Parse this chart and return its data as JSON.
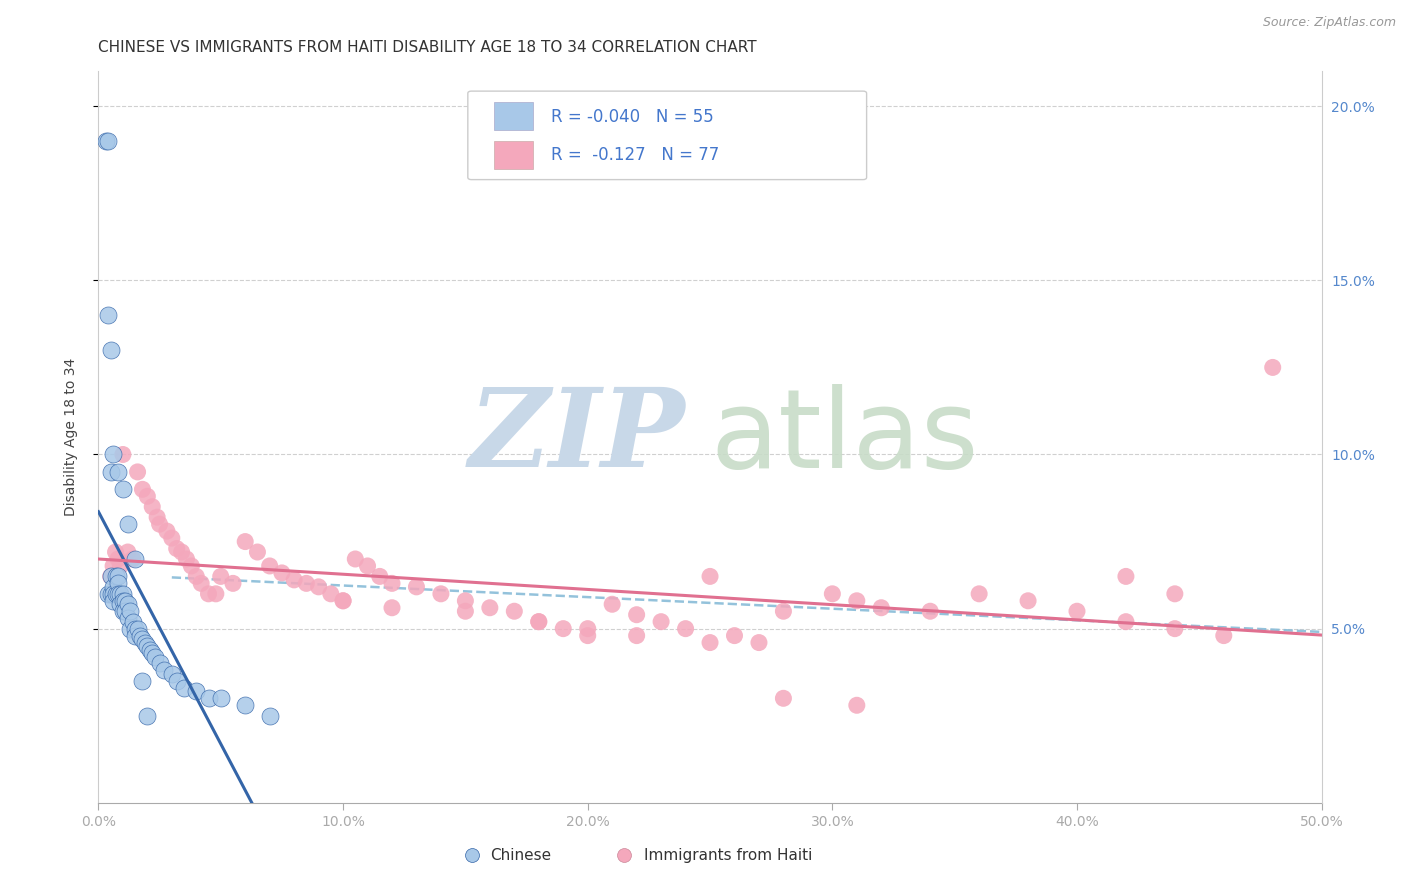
{
  "title": "CHINESE VS IMMIGRANTS FROM HAITI DISABILITY AGE 18 TO 34 CORRELATION CHART",
  "source": "Source: ZipAtlas.com",
  "ylabel": "Disability Age 18 to 34",
  "xlim": [
    0.0,
    0.5
  ],
  "ylim": [
    0.0,
    0.21
  ],
  "xticks": [
    0.0,
    0.1,
    0.2,
    0.3,
    0.4,
    0.5
  ],
  "yticks": [
    0.05,
    0.1,
    0.15,
    0.2
  ],
  "xticklabels": [
    "0.0%",
    "10.0%",
    "20.0%",
    "30.0%",
    "40.0%",
    "50.0%"
  ],
  "yticklabels_right": [
    "5.0%",
    "10.0%",
    "15.0%",
    "20.0%"
  ],
  "R_chinese": -0.04,
  "N_chinese": 55,
  "R_haiti": -0.127,
  "N_haiti": 77,
  "chinese_color": "#a8c8e8",
  "haiti_color": "#f4a8bc",
  "chinese_line_color": "#3465a8",
  "haiti_line_color": "#e07090",
  "dash_line_color": "#88bcd8",
  "background_color": "#ffffff",
  "grid_color": "#d0d0d0",
  "title_fontsize": 11,
  "legend_color": "#4477cc",
  "chinese_x": [
    0.003,
    0.004,
    0.004,
    0.005,
    0.005,
    0.005,
    0.006,
    0.006,
    0.006,
    0.007,
    0.007,
    0.008,
    0.008,
    0.008,
    0.009,
    0.009,
    0.01,
    0.01,
    0.01,
    0.011,
    0.011,
    0.012,
    0.012,
    0.013,
    0.013,
    0.014,
    0.015,
    0.015,
    0.016,
    0.017,
    0.018,
    0.019,
    0.02,
    0.021,
    0.022,
    0.023,
    0.025,
    0.027,
    0.03,
    0.032,
    0.035,
    0.04,
    0.045,
    0.05,
    0.06,
    0.07,
    0.004,
    0.005,
    0.006,
    0.008,
    0.01,
    0.012,
    0.015,
    0.018,
    0.02
  ],
  "chinese_y": [
    0.19,
    0.19,
    0.06,
    0.095,
    0.065,
    0.06,
    0.062,
    0.06,
    0.058,
    0.065,
    0.06,
    0.065,
    0.063,
    0.06,
    0.06,
    0.057,
    0.06,
    0.058,
    0.055,
    0.058,
    0.055,
    0.057,
    0.053,
    0.055,
    0.05,
    0.052,
    0.05,
    0.048,
    0.05,
    0.048,
    0.047,
    0.046,
    0.045,
    0.044,
    0.043,
    0.042,
    0.04,
    0.038,
    0.037,
    0.035,
    0.033,
    0.032,
    0.03,
    0.03,
    0.028,
    0.025,
    0.14,
    0.13,
    0.1,
    0.095,
    0.09,
    0.08,
    0.07,
    0.035,
    0.025
  ],
  "haiti_x": [
    0.005,
    0.006,
    0.007,
    0.008,
    0.009,
    0.01,
    0.012,
    0.014,
    0.016,
    0.018,
    0.02,
    0.022,
    0.024,
    0.025,
    0.028,
    0.03,
    0.032,
    0.034,
    0.036,
    0.038,
    0.04,
    0.042,
    0.045,
    0.048,
    0.05,
    0.055,
    0.06,
    0.065,
    0.07,
    0.075,
    0.08,
    0.085,
    0.09,
    0.095,
    0.1,
    0.105,
    0.11,
    0.115,
    0.12,
    0.13,
    0.14,
    0.15,
    0.16,
    0.17,
    0.18,
    0.19,
    0.2,
    0.21,
    0.22,
    0.23,
    0.24,
    0.25,
    0.26,
    0.27,
    0.28,
    0.3,
    0.31,
    0.32,
    0.34,
    0.36,
    0.38,
    0.4,
    0.42,
    0.44,
    0.46,
    0.48,
    0.42,
    0.44,
    0.1,
    0.12,
    0.15,
    0.18,
    0.2,
    0.22,
    0.25,
    0.28,
    0.31
  ],
  "haiti_y": [
    0.065,
    0.068,
    0.072,
    0.07,
    0.068,
    0.1,
    0.072,
    0.07,
    0.095,
    0.09,
    0.088,
    0.085,
    0.082,
    0.08,
    0.078,
    0.076,
    0.073,
    0.072,
    0.07,
    0.068,
    0.065,
    0.063,
    0.06,
    0.06,
    0.065,
    0.063,
    0.075,
    0.072,
    0.068,
    0.066,
    0.064,
    0.063,
    0.062,
    0.06,
    0.058,
    0.07,
    0.068,
    0.065,
    0.063,
    0.062,
    0.06,
    0.058,
    0.056,
    0.055,
    0.052,
    0.05,
    0.048,
    0.057,
    0.054,
    0.052,
    0.05,
    0.065,
    0.048,
    0.046,
    0.055,
    0.06,
    0.058,
    0.056,
    0.055,
    0.06,
    0.058,
    0.055,
    0.052,
    0.05,
    0.048,
    0.125,
    0.065,
    0.06,
    0.058,
    0.056,
    0.055,
    0.052,
    0.05,
    0.048,
    0.046,
    0.03,
    0.028
  ]
}
